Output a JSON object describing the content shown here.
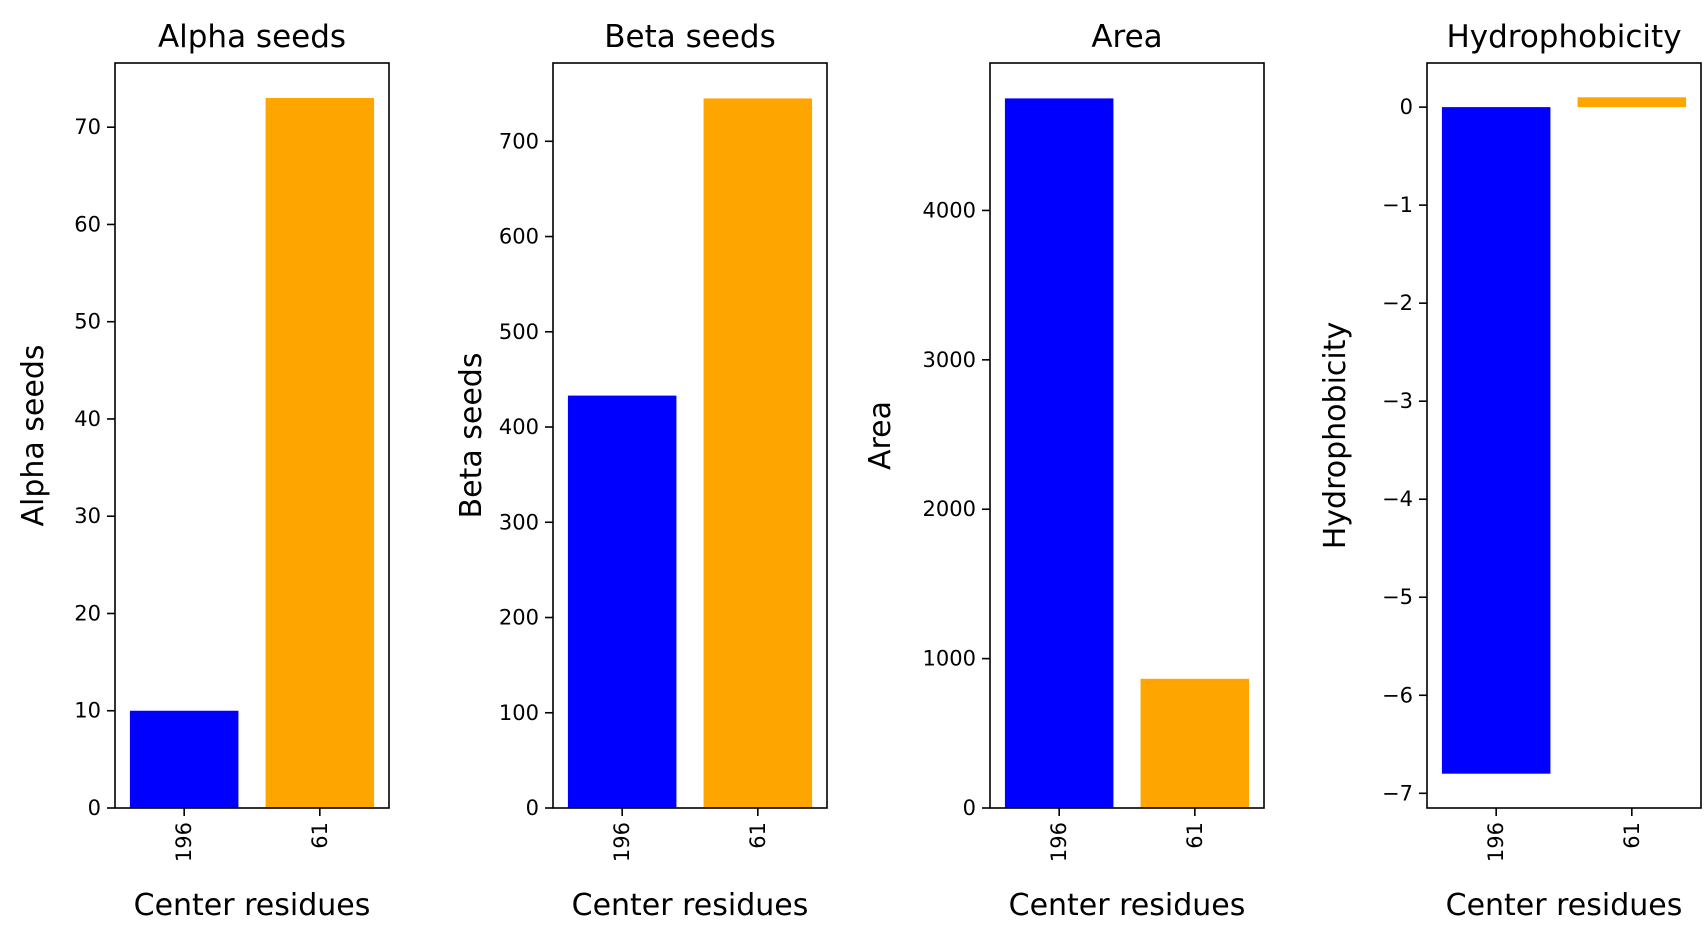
{
  "chart_data": [
    {
      "type": "bar",
      "title": "Alpha seeds",
      "xlabel": "Center residues",
      "ylabel": "Alpha seeds",
      "categories": [
        "196",
        "61"
      ],
      "values": [
        10,
        73
      ],
      "colors": [
        "#0000ff",
        "#ffa500"
      ],
      "ylim": [
        0,
        76.6
      ],
      "yticks": [
        0,
        10,
        20,
        30,
        40,
        50,
        60,
        70
      ],
      "grid": false
    },
    {
      "type": "bar",
      "title": "Beta seeds",
      "xlabel": "Center residues",
      "ylabel": "Beta seeds",
      "categories": [
        "196",
        "61"
      ],
      "values": [
        433,
        745
      ],
      "colors": [
        "#0000ff",
        "#ffa500"
      ],
      "ylim": [
        0,
        782.2
      ],
      "yticks": [
        0,
        100,
        200,
        300,
        400,
        500,
        600,
        700
      ],
      "grid": false
    },
    {
      "type": "bar",
      "title": "Area",
      "xlabel": "Center residues",
      "ylabel": "Area",
      "categories": [
        "196",
        "61"
      ],
      "values": [
        4750,
        865
      ],
      "colors": [
        "#0000ff",
        "#ffa500"
      ],
      "ylim": [
        0,
        4987
      ],
      "yticks": [
        0,
        1000,
        2000,
        3000,
        4000
      ],
      "grid": false
    },
    {
      "type": "bar",
      "title": "Hydrophobicity",
      "xlabel": "Center residues",
      "ylabel": "Hydrophobicity",
      "categories": [
        "196",
        "61"
      ],
      "values": [
        -6.8,
        0.1
      ],
      "colors": [
        "#0000ff",
        "#ffa500"
      ],
      "ylim": [
        -7.15,
        0.45
      ],
      "yticks": [
        -7,
        -6,
        -5,
        -4,
        -3,
        -2,
        -1,
        0
      ],
      "grid": false
    }
  ]
}
